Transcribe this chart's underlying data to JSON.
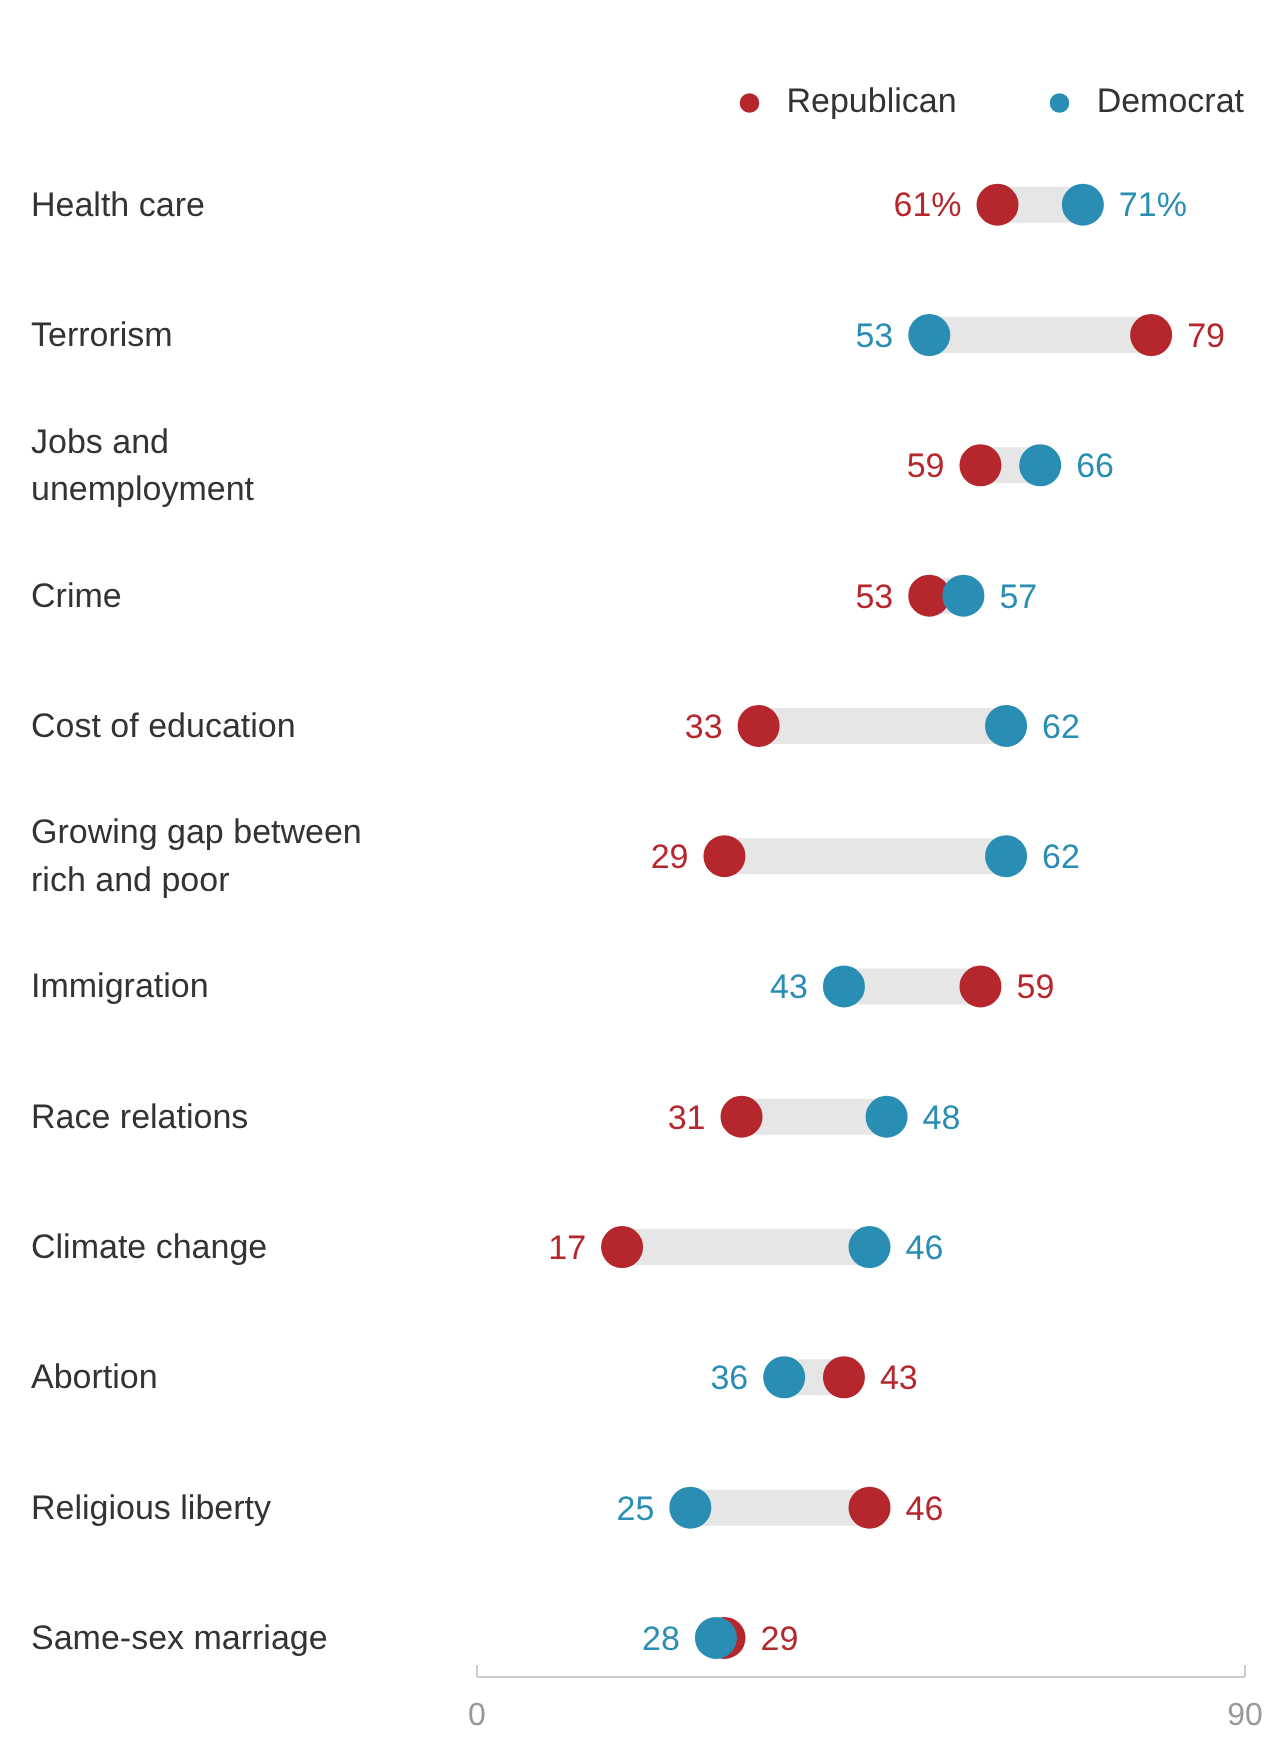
{
  "chart_data": {
    "type": "scatter",
    "orientation": "horizontal",
    "categories": [
      "Health care",
      "Terrorism",
      "Jobs and\nunemployment",
      "Crime",
      "Cost of education",
      "Growing gap between\nrich and poor",
      "Immigration",
      "Race relations",
      "Climate change",
      "Abortion",
      "Religious liberty",
      "Same-sex marriage"
    ],
    "series": [
      {
        "name": "Republican",
        "color": "#b5272d",
        "values": [
          61,
          79,
          59,
          53,
          33,
          29,
          59,
          31,
          17,
          43,
          46,
          29
        ],
        "value_labels": [
          "61%",
          "79",
          "59",
          "53",
          "33",
          "29",
          "59",
          "31",
          "17",
          "43",
          "46",
          "29"
        ]
      },
      {
        "name": "Democrat",
        "color": "#2a8db3",
        "values": [
          71,
          53,
          66,
          57,
          62,
          62,
          43,
          48,
          46,
          36,
          25,
          28
        ],
        "value_labels": [
          "71%",
          "53",
          "66",
          "57",
          "62",
          "62",
          "43",
          "48",
          "46",
          "36",
          "25",
          "28"
        ]
      }
    ],
    "xlim": [
      0,
      90
    ],
    "xticks": [
      0,
      90
    ],
    "marker": "circle",
    "legend": "top right"
  }
}
